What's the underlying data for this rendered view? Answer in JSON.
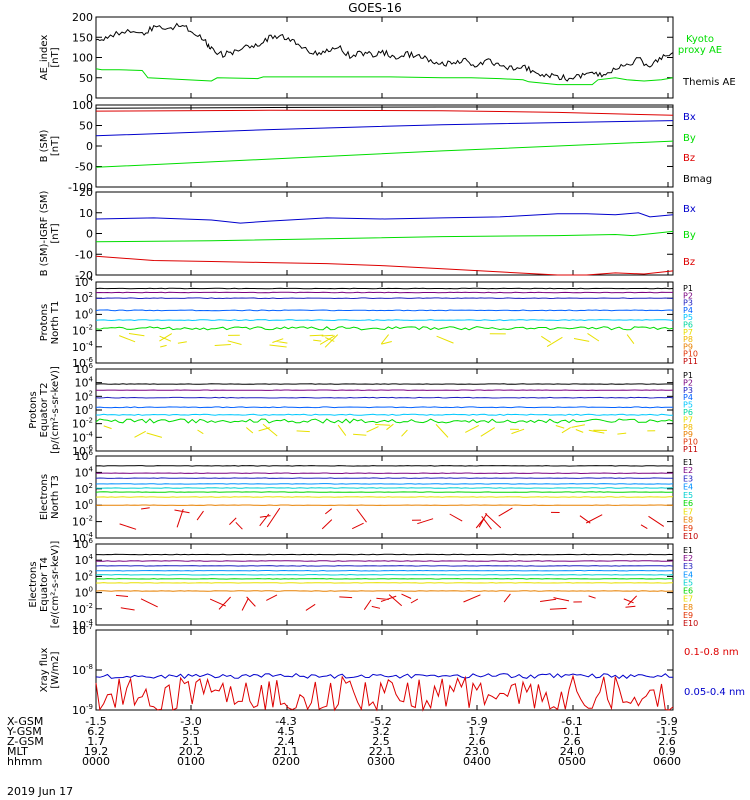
{
  "title": "GOES-16",
  "date_label": "2019 Jun 17",
  "colors": {
    "black": "#000000",
    "blue": "#0000cc",
    "green": "#00dd00",
    "red": "#dd0000",
    "P1": "#000000",
    "P2": "#7a0080",
    "P3": "#2020c0",
    "P4": "#0060ff",
    "P5": "#00c8ff",
    "P6": "#00d8a0",
    "P7": "#e8e000",
    "P8": "#f0b800",
    "P9": "#e88000",
    "P10": "#e03000",
    "P11": "#c00000",
    "E1": "#000000",
    "E2": "#7a0080",
    "E3": "#2020c0",
    "E4": "#0090ff",
    "E5": "#00d0d0",
    "E6": "#00d800",
    "E7": "#e8e000",
    "E8": "#e88000",
    "E9": "#e03000",
    "E10": "#c00000"
  },
  "chart_data": [
    {
      "id": "ae",
      "type": "line",
      "ylabel": [
        "AE_index",
        "[nT]"
      ],
      "ylim": [
        0,
        200
      ],
      "yticks": [
        "0",
        "50",
        "100",
        "150",
        "200"
      ],
      "legend": [
        {
          "text": "Kyoto",
          "color": "#00dd00"
        },
        {
          "text": "proxy AE",
          "color": "#00dd00"
        },
        {
          "text": "Themis AE",
          "color": "#000000"
        }
      ],
      "series": [
        {
          "name": "Kyoto proxy AE",
          "color": "#00dd00",
          "x": [
            0,
            0.01,
            0.04,
            0.08,
            0.09,
            0.2,
            0.21,
            0.28,
            0.29,
            0.5,
            0.51,
            0.6,
            0.65,
            0.7,
            0.74,
            0.75,
            0.8,
            0.82,
            0.86,
            0.87,
            0.9,
            0.92,
            0.95,
            0.98,
            1
          ],
          "y": [
            72,
            70,
            70,
            68,
            50,
            42,
            50,
            48,
            52,
            52,
            52,
            50,
            50,
            48,
            45,
            40,
            33,
            33,
            33,
            45,
            50,
            45,
            42,
            45,
            50
          ]
        },
        {
          "name": "Themis AE",
          "color": "#000000",
          "x": [
            0,
            0.02,
            0.05,
            0.08,
            0.1,
            0.13,
            0.15,
            0.17,
            0.19,
            0.2,
            0.22,
            0.24,
            0.26,
            0.28,
            0.3,
            0.32,
            0.34,
            0.36,
            0.38,
            0.4,
            0.42,
            0.44,
            0.46,
            0.48,
            0.5,
            0.52,
            0.54,
            0.56,
            0.58,
            0.6,
            0.62,
            0.64,
            0.66,
            0.68,
            0.7,
            0.72,
            0.74,
            0.76,
            0.78,
            0.8,
            0.82,
            0.84,
            0.86,
            0.88,
            0.9,
            0.92,
            0.94,
            0.96,
            0.98,
            1
          ],
          "y": [
            140,
            148,
            165,
            160,
            172,
            175,
            180,
            160,
            140,
            120,
            108,
            115,
            130,
            128,
            148,
            155,
            145,
            120,
            112,
            115,
            125,
            105,
            110,
            108,
            112,
            100,
            108,
            104,
            90,
            82,
            88,
            95,
            76,
            92,
            80,
            75,
            82,
            60,
            58,
            52,
            48,
            56,
            60,
            56,
            72,
            85,
            95,
            80,
            100,
            112
          ]
        }
      ]
    },
    {
      "id": "bsm",
      "type": "line",
      "ylabel": [
        "B (SM)",
        "[nT]"
      ],
      "ylim": [
        -100,
        100
      ],
      "yticks": [
        "-100",
        "-50",
        "0",
        "50",
        "100"
      ],
      "legend": [
        {
          "text": "Bx",
          "color": "#0000cc"
        },
        {
          "text": "By",
          "color": "#00dd00"
        },
        {
          "text": "Bz",
          "color": "#dd0000"
        },
        {
          "text": "Bmag",
          "color": "#000000"
        }
      ],
      "series": [
        {
          "name": "Bmag",
          "color": "#000000",
          "x": [
            0,
            0.3,
            0.6,
            1
          ],
          "y": [
            92,
            94,
            95,
            95
          ]
        },
        {
          "name": "Bz",
          "color": "#dd0000",
          "x": [
            0,
            0.3,
            0.6,
            0.8,
            1
          ],
          "y": [
            85,
            87,
            86,
            82,
            75
          ]
        },
        {
          "name": "Bx",
          "color": "#0000cc",
          "x": [
            0,
            0.3,
            0.6,
            1
          ],
          "y": [
            25,
            40,
            52,
            62
          ]
        },
        {
          "name": "By",
          "color": "#00dd00",
          "x": [
            0,
            0.3,
            0.6,
            1
          ],
          "y": [
            -52,
            -32,
            -12,
            12
          ]
        }
      ]
    },
    {
      "id": "bigrf",
      "type": "line",
      "ylabel": [
        "B (SM)-IGRF (SM)",
        "[nT]"
      ],
      "ylim": [
        -20,
        20
      ],
      "yticks": [
        "-20",
        "-10",
        "0",
        "10",
        "20"
      ],
      "legend": [
        {
          "text": "Bx",
          "color": "#0000cc"
        },
        {
          "text": "By",
          "color": "#00dd00"
        },
        {
          "text": "Bz",
          "color": "#dd0000"
        }
      ],
      "series": [
        {
          "name": "Bx",
          "color": "#0000cc",
          "x": [
            0,
            0.1,
            0.2,
            0.25,
            0.3,
            0.4,
            0.5,
            0.6,
            0.7,
            0.8,
            0.85,
            0.9,
            0.94,
            0.96,
            1
          ],
          "y": [
            7,
            7.5,
            6.5,
            5,
            6,
            7.5,
            7,
            7.5,
            8,
            9.5,
            9.5,
            9,
            10,
            8,
            9
          ]
        },
        {
          "name": "By",
          "color": "#00dd00",
          "x": [
            0,
            0.2,
            0.4,
            0.6,
            0.8,
            0.9,
            0.93,
            1
          ],
          "y": [
            -4,
            -3.5,
            -2.5,
            -1.5,
            -1,
            -0.5,
            -1,
            1
          ]
        },
        {
          "name": "Bz",
          "color": "#dd0000",
          "x": [
            0,
            0.05,
            0.1,
            0.2,
            0.3,
            0.4,
            0.5,
            0.6,
            0.7,
            0.8,
            0.85,
            0.9,
            0.95,
            1
          ],
          "y": [
            -11,
            -12,
            -13,
            -13.5,
            -14,
            -14.5,
            -15.5,
            -17,
            -18.5,
            -20,
            -20,
            -19,
            -19.5,
            -18
          ]
        }
      ]
    },
    {
      "id": "pn",
      "type": "line",
      "yscale": "log",
      "ylabel": [
        "Protons",
        "North T1"
      ],
      "ylim": [
        -6,
        4
      ],
      "yticks": [
        -6,
        -4,
        -2,
        0,
        2,
        4
      ],
      "legend": [
        {
          "text": "P1",
          "color": "#000000"
        },
        {
          "text": "P2",
          "color": "#7a0080"
        },
        {
          "text": "P3",
          "color": "#2020c0"
        },
        {
          "text": "P4",
          "color": "#0060ff"
        },
        {
          "text": "P5",
          "color": "#00c8ff"
        },
        {
          "text": "P6",
          "color": "#00d8a0"
        },
        {
          "text": "P7",
          "color": "#e8e000"
        },
        {
          "text": "P8",
          "color": "#f0b800"
        },
        {
          "text": "P9",
          "color": "#e88000"
        },
        {
          "text": "P10",
          "color": "#e03000"
        },
        {
          "text": "P11",
          "color": "#c00000"
        }
      ],
      "series": [
        {
          "name": "P1",
          "color": "#000000",
          "level": 3.2,
          "noise": 0.03
        },
        {
          "name": "P2",
          "color": "#7a0080",
          "level": 2.7,
          "noise": 0.03
        },
        {
          "name": "P3",
          "color": "#2020c0",
          "level": 2.0,
          "noise": 0.04
        },
        {
          "name": "P4",
          "color": "#0060ff",
          "level": 0.5,
          "noise": 0.05
        },
        {
          "name": "P5",
          "color": "#00c8ff",
          "level": -0.7,
          "noise": 0.06
        },
        {
          "name": "P6",
          "color": "#00dd00",
          "level": -1.7,
          "noise": 0.2
        },
        {
          "name": "P7",
          "color": "#e8e000",
          "level": -3.2,
          "noise": 0.3,
          "sparse": true
        }
      ]
    },
    {
      "id": "pe",
      "type": "line",
      "yscale": "log",
      "ylabel": [
        "Protons",
        "Equator T2",
        "[p/(cm²-s-sr-keV)]"
      ],
      "ylim": [
        -6,
        6
      ],
      "yticks": [
        -6,
        -4,
        -2,
        0,
        2,
        4,
        6
      ],
      "legend": [
        {
          "text": "P1",
          "color": "#000000"
        },
        {
          "text": "P2",
          "color": "#7a0080"
        },
        {
          "text": "P3",
          "color": "#2020c0"
        },
        {
          "text": "P4",
          "color": "#0060ff"
        },
        {
          "text": "P5",
          "color": "#00c8ff"
        },
        {
          "text": "P6",
          "color": "#00d8a0"
        },
        {
          "text": "P7",
          "color": "#e8e000"
        },
        {
          "text": "P8",
          "color": "#f0b800"
        },
        {
          "text": "P9",
          "color": "#e88000"
        },
        {
          "text": "P10",
          "color": "#e03000"
        },
        {
          "text": "P11",
          "color": "#c00000"
        }
      ],
      "series": [
        {
          "name": "P1",
          "color": "#000000",
          "level": 3.8,
          "noise": 0.03
        },
        {
          "name": "P2",
          "color": "#7a0080",
          "level": 2.9,
          "noise": 0.03
        },
        {
          "name": "P3",
          "color": "#2020c0",
          "level": 1.8,
          "noise": 0.05
        },
        {
          "name": "P4",
          "color": "#0060ff",
          "level": 0.4,
          "noise": 0.06
        },
        {
          "name": "P5",
          "color": "#00c8ff",
          "level": -0.7,
          "noise": 0.08
        },
        {
          "name": "P6",
          "color": "#00dd00",
          "level": -1.6,
          "noise": 0.3
        },
        {
          "name": "P7",
          "color": "#e8e000",
          "level": -3.0,
          "noise": 0.35,
          "sparse": true
        }
      ]
    },
    {
      "id": "en",
      "type": "line",
      "yscale": "log",
      "ylabel": [
        "Electrons",
        "North T3"
      ],
      "ylim": [
        -4,
        6
      ],
      "yticks": [
        -4,
        -2,
        0,
        2,
        4,
        6
      ],
      "legend": [
        {
          "text": "E1",
          "color": "#000000"
        },
        {
          "text": "E2",
          "color": "#7a0080"
        },
        {
          "text": "E3",
          "color": "#2020c0"
        },
        {
          "text": "E4",
          "color": "#0090ff"
        },
        {
          "text": "E5",
          "color": "#00d0d0"
        },
        {
          "text": "E6",
          "color": "#00d800"
        },
        {
          "text": "E7",
          "color": "#e8e000"
        },
        {
          "text": "E8",
          "color": "#e88000"
        },
        {
          "text": "E9",
          "color": "#e03000"
        },
        {
          "text": "E10",
          "color": "#c00000"
        }
      ],
      "series": [
        {
          "name": "E1",
          "color": "#000000",
          "level": 4.8,
          "noise": 0.03
        },
        {
          "name": "E2",
          "color": "#7a0080",
          "level": 3.9,
          "noise": 0.03
        },
        {
          "name": "E3",
          "color": "#2020c0",
          "level": 3.3,
          "noise": 0.03
        },
        {
          "name": "E4",
          "color": "#0090ff",
          "level": 2.6,
          "noise": 0.03
        },
        {
          "name": "E5",
          "color": "#00d0d0",
          "level": 2.1,
          "noise": 0.03
        },
        {
          "name": "E6",
          "color": "#00d800",
          "level": 1.6,
          "noise": 0.03
        },
        {
          "name": "E7",
          "color": "#e8e000",
          "level": 1.0,
          "noise": 0.03
        },
        {
          "name": "E8",
          "color": "#e88000",
          "level": 0.0,
          "noise": 0.03
        },
        {
          "name": "E9",
          "color": "#dd0000",
          "level": -1.6,
          "noise": 0.45,
          "sparse": true
        }
      ]
    },
    {
      "id": "ee",
      "type": "line",
      "yscale": "log",
      "ylabel": [
        "Electrons",
        "Equator T4",
        "[e/(cm²-s-sr-keV)]"
      ],
      "ylim": [
        -4,
        6
      ],
      "yticks": [
        -4,
        -2,
        0,
        2,
        4,
        6
      ],
      "legend": [
        {
          "text": "E1",
          "color": "#000000"
        },
        {
          "text": "E2",
          "color": "#7a0080"
        },
        {
          "text": "E3",
          "color": "#2020c0"
        },
        {
          "text": "E4",
          "color": "#0090ff"
        },
        {
          "text": "E5",
          "color": "#00d0d0"
        },
        {
          "text": "E6",
          "color": "#00d800"
        },
        {
          "text": "E7",
          "color": "#e8e000"
        },
        {
          "text": "E8",
          "color": "#e88000"
        },
        {
          "text": "E9",
          "color": "#e03000"
        },
        {
          "text": "E10",
          "color": "#c00000"
        }
      ],
      "series": [
        {
          "name": "E1",
          "color": "#000000",
          "level": 4.7,
          "noise": 0.03
        },
        {
          "name": "E2",
          "color": "#7a0080",
          "level": 3.9,
          "noise": 0.03
        },
        {
          "name": "E3",
          "color": "#2020c0",
          "level": 3.3,
          "noise": 0.03
        },
        {
          "name": "E4",
          "color": "#0090ff",
          "level": 2.7,
          "noise": 0.03
        },
        {
          "name": "E5",
          "color": "#00d0d0",
          "level": 2.2,
          "noise": 0.03
        },
        {
          "name": "E6",
          "color": "#00d800",
          "level": 1.7,
          "noise": 0.03
        },
        {
          "name": "E7",
          "color": "#e8e000",
          "level": 1.2,
          "noise": 0.03
        },
        {
          "name": "E8",
          "color": "#e88000",
          "level": 0.2,
          "noise": 0.03
        },
        {
          "name": "E9",
          "color": "#dd0000",
          "level": -1.2,
          "noise": 0.35,
          "sparse": true
        }
      ]
    },
    {
      "id": "xray",
      "type": "line",
      "yscale": "log",
      "ylabel": [
        "Xray flux",
        "[W/m2]"
      ],
      "ylim": [
        -9,
        -7
      ],
      "yticks": [
        -9,
        -8,
        -7
      ],
      "legend": [
        {
          "text": "0.1-0.8 nm",
          "color": "#dd0000"
        },
        {
          "text": "0.05-0.4 nm",
          "color": "#0000cc"
        }
      ],
      "series": [
        {
          "name": "0.05-0.4 nm",
          "color": "#0000cc",
          "level": -8.15,
          "noise": 0.06
        },
        {
          "name": "0.1-0.8 nm",
          "color": "#dd0000",
          "level": -8.75,
          "noise": 0.35
        }
      ]
    }
  ],
  "position_table": {
    "rows": [
      {
        "label": "X-GSM",
        "values": [
          "-1.5",
          "-3.0",
          "-4.3",
          "-5.2",
          "-5.9",
          "-6.1",
          "-5.9"
        ]
      },
      {
        "label": "Y-GSM",
        "values": [
          "6.2",
          "5.5",
          "4.5",
          "3.2",
          "1.7",
          "0.1",
          "-1.5"
        ]
      },
      {
        "label": "Z-GSM",
        "values": [
          "1.7",
          "2.1",
          "2.4",
          "2.5",
          "2.6",
          "2.6",
          "2.6"
        ]
      },
      {
        "label": "MLT",
        "values": [
          "19.2",
          "20.2",
          "21.1",
          "22.1",
          "23.0",
          "24.0",
          "0.9"
        ]
      },
      {
        "label": "hhmm",
        "values": [
          "0000",
          "0100",
          "0200",
          "0300",
          "0400",
          "0500",
          "0600"
        ]
      }
    ]
  }
}
